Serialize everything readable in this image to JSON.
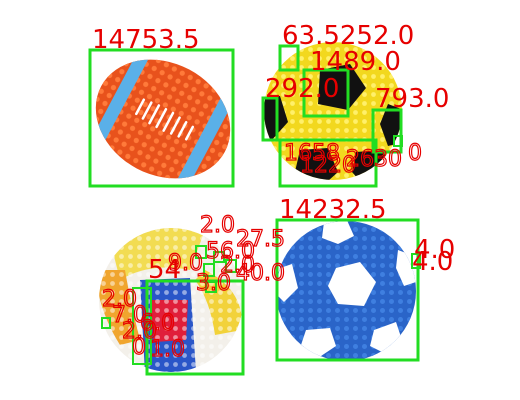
{
  "scene": {
    "description_hidden": false,
    "colors": {
      "detection_box": "#22dd22",
      "label_text": "#e60000",
      "background": "#ffffff"
    }
  },
  "detections": [
    {
      "id": "football-toy",
      "label": "14753.5"
    },
    {
      "id": "yellow-ball-top",
      "label": "63.5252.0"
    },
    {
      "id": "yellow-ball-mid",
      "label": "1489.0"
    },
    {
      "id": "yellow-ball-left",
      "label": "292.0"
    },
    {
      "id": "yellow-ball-right",
      "label": "793.0"
    },
    {
      "id": "blue-soccer-ball",
      "label": "14232.5"
    },
    {
      "id": "blue-soccer-ball-edge",
      "label": "4.0"
    },
    {
      "id": "multicolor-ball-patch",
      "label": "54"
    }
  ],
  "clutter_labels": {
    "yellow_ball": [
      "1658",
      "1220",
      "2630",
      "0"
    ],
    "multicolor_ball": [
      "2.0",
      "27.5",
      "56.0",
      "2.0",
      "3.0",
      "40.0",
      "9.0",
      "2.0",
      "7.0",
      "2.0",
      "6.0",
      "0",
      "1.0"
    ]
  }
}
